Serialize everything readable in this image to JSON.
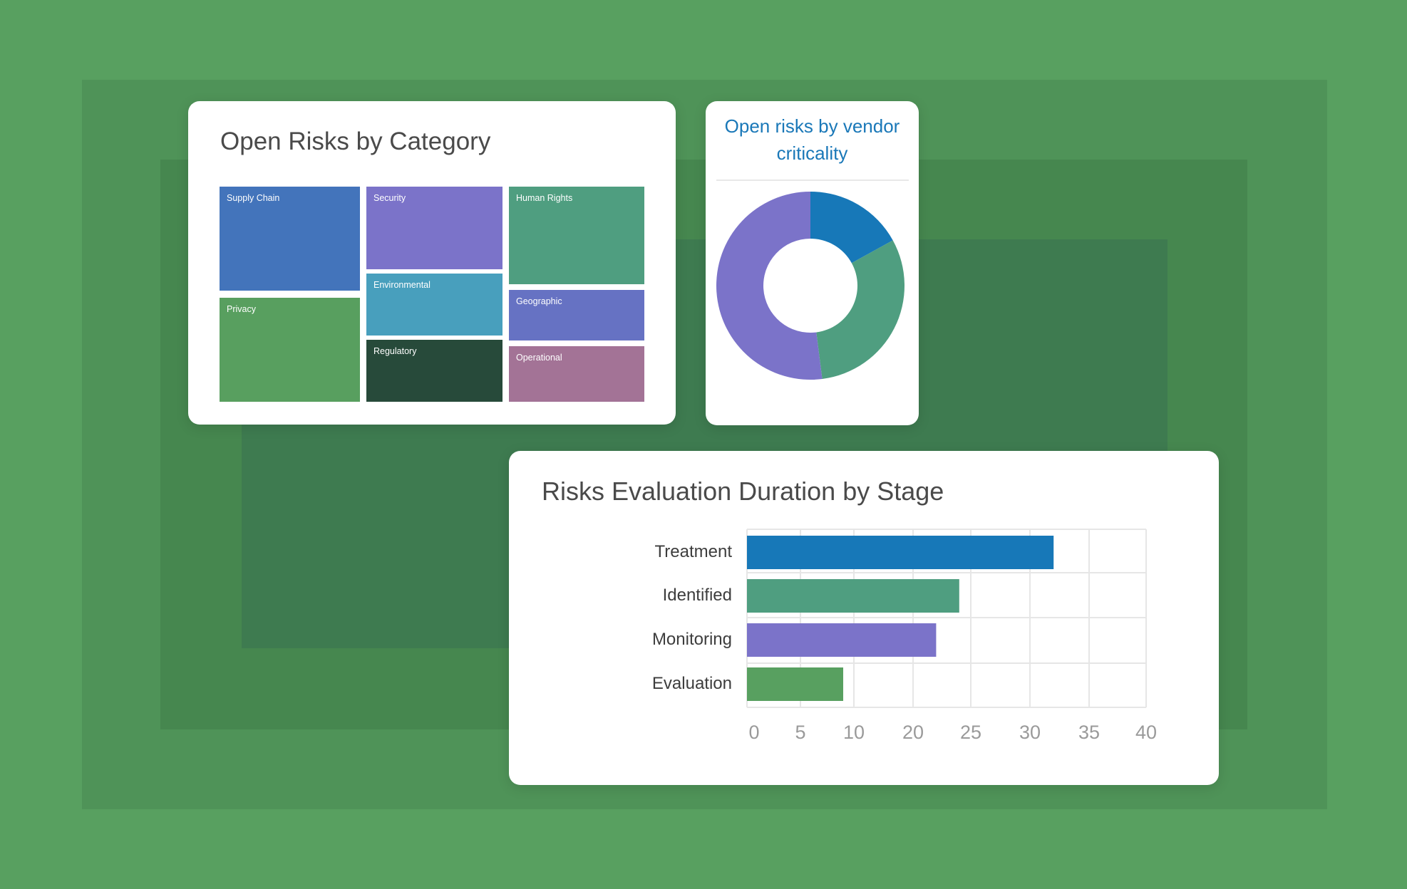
{
  "background_colors": [
    "#58a060",
    "#4f9358",
    "#46874f",
    "#3e7b50"
  ],
  "chart_data": [
    {
      "type": "treemap",
      "title": "Open Risks by Category",
      "categories": [
        {
          "label": "Supply Chain",
          "color": "#4374bb"
        },
        {
          "label": "Privacy",
          "color": "#589f5f"
        },
        {
          "label": "Security",
          "color": "#7b73c9"
        },
        {
          "label": "Environmental",
          "color": "#489fbd"
        },
        {
          "label": "Regulatory",
          "color": "#274a3a"
        },
        {
          "label": "Human Rights",
          "color": "#4f9e80"
        },
        {
          "label": "Geographic",
          "color": "#6672c3"
        },
        {
          "label": "Operational",
          "color": "#a37396"
        }
      ]
    },
    {
      "type": "pie",
      "title": "Open risks by vendor criticality",
      "donut": true,
      "slices": [
        {
          "value": 17,
          "color": "#1778b8"
        },
        {
          "value": 31,
          "color": "#4f9e80"
        },
        {
          "value": 52,
          "color": "#7b73c9"
        }
      ]
    },
    {
      "type": "bar",
      "orientation": "horizontal",
      "title": "Risks Evaluation Duration by Stage",
      "categories": [
        "Treatment",
        "Identified",
        "Monitoring",
        "Evaluation"
      ],
      "values": [
        32,
        24,
        22,
        9
      ],
      "colors": [
        "#1778b8",
        "#4f9e80",
        "#7b73c9",
        "#58a060"
      ],
      "x_tick_labels": [
        "0",
        "5",
        "10",
        "20",
        "25",
        "30",
        "35",
        "40"
      ],
      "xlim": [
        0,
        40
      ],
      "grid": true
    }
  ]
}
